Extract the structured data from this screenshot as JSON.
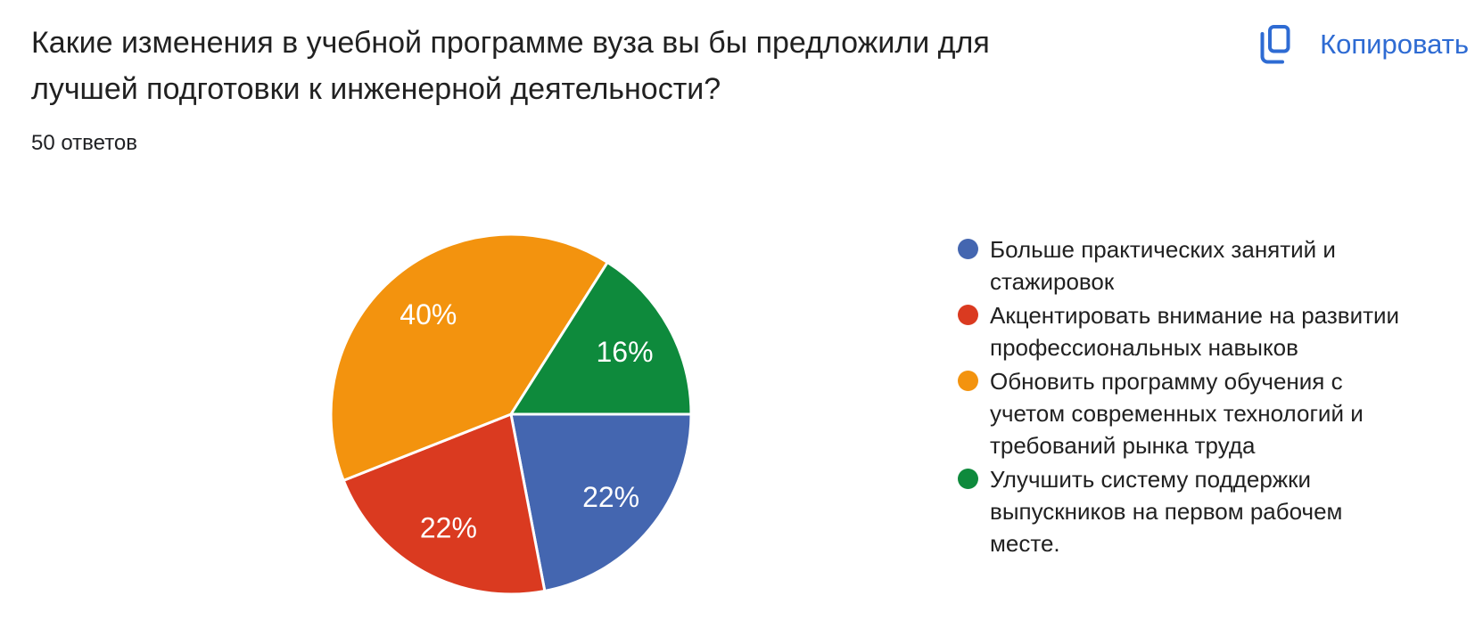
{
  "header": {
    "title": "Какие изменения в учебной программе вуза вы бы предложили для лучшей подготовки к инженерной деятельности?",
    "title_lines": [
      "Какие изменения в учебной программе вуза вы бы предложили для",
      "лучшей подготовки к инженерной деятельности?"
    ],
    "answers_count": "50 ответов",
    "copy_button": {
      "label": "Копировать",
      "icon": "copy-icon",
      "color": "#2e6bd3"
    }
  },
  "colors": {
    "background": "#ffffff",
    "title_text": "#212121",
    "answers_text": "#202124",
    "legend_text": "#212121",
    "slice_label_text": "#ffffff",
    "slice_separator": "#ffffff"
  },
  "chart_data": {
    "type": "pie",
    "title": "Какие изменения в учебной программе вуза вы бы предложили для лучшей подготовки к инженерной деятельности?",
    "subtitle": "50 ответов",
    "total_responses": 50,
    "unit": "%",
    "legend_position": "right",
    "start_angle_deg_from_east_clockwise": 0,
    "slice_label_format": "percent",
    "slices": [
      {
        "label": "Больше практических занятий и стажировок",
        "label_lines": [
          "Больше практических занятий и",
          "стажировок"
        ],
        "percent": 22,
        "color": "#4466b0"
      },
      {
        "label": "Акцентировать внимание на развитии профессиональных навыков",
        "label_lines": [
          "Акцентировать внимание на развитии",
          "профессиональных навыков"
        ],
        "percent": 22,
        "color": "#da3a20"
      },
      {
        "label": "Обновить программу обучения с учетом современных технологий и требований рынка труда",
        "label_lines": [
          "Обновить программу обучения с",
          "учетом современных технологий и",
          "требований рынка труда"
        ],
        "percent": 40,
        "color": "#f3930e"
      },
      {
        "label": "Улучшить систему поддержки выпускников на первом рабочем месте.",
        "label_lines": [
          "Улучшить систему поддержки",
          "выпускников на первом рабочем",
          "месте."
        ],
        "percent": 16,
        "color": "#0e8a3c"
      }
    ]
  }
}
